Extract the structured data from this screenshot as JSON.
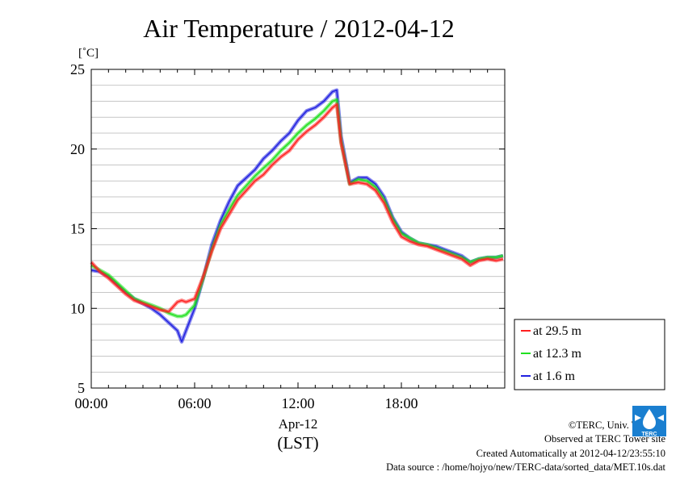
{
  "chart_data": {
    "type": "line",
    "title": "Air Temperature / 2012-04-12",
    "ylabel_unit": "[˚C]",
    "xlabel": "Apr-12",
    "xlabel2": "(LST)",
    "xlim": [
      0,
      24
    ],
    "ylim": [
      5,
      25
    ],
    "x_ticks": [
      {
        "value": 0,
        "label": "00:00"
      },
      {
        "value": 6,
        "label": "06:00"
      },
      {
        "value": 12,
        "label": "12:00"
      },
      {
        "value": 18,
        "label": "18:00"
      }
    ],
    "y_ticks": [
      {
        "value": 5,
        "label": "5"
      },
      {
        "value": 10,
        "label": "10"
      },
      {
        "value": 15,
        "label": "15"
      },
      {
        "value": 20,
        "label": "20"
      },
      {
        "value": 25,
        "label": "25"
      }
    ],
    "grid": true,
    "legend_position": "bottom-right-outside",
    "x": [
      0,
      0.5,
      1,
      1.5,
      2,
      2.5,
      3,
      3.5,
      4,
      4.5,
      5,
      5.25,
      5.5,
      6,
      6.5,
      7,
      7.5,
      8,
      8.5,
      9,
      9.5,
      10,
      10.5,
      11,
      11.5,
      12,
      12.5,
      13,
      13.5,
      14,
      14.25,
      14.5,
      15,
      15.5,
      16,
      16.5,
      17,
      17.5,
      18,
      18.5,
      19,
      19.5,
      20,
      20.5,
      21,
      21.5,
      22,
      22.5,
      23,
      23.5,
      23.9
    ],
    "series": [
      {
        "name": "at 29.5 m",
        "color": "#ff2020",
        "values": [
          12.9,
          12.3,
          11.9,
          11.4,
          10.9,
          10.5,
          10.3,
          10.1,
          9.9,
          9.8,
          10.4,
          10.5,
          10.4,
          10.6,
          12.0,
          13.6,
          15.0,
          15.9,
          16.8,
          17.4,
          18.0,
          18.4,
          19.0,
          19.5,
          19.9,
          20.6,
          21.1,
          21.5,
          22.0,
          22.6,
          22.8,
          20.4,
          17.8,
          17.9,
          17.8,
          17.4,
          16.6,
          15.4,
          14.5,
          14.2,
          14.0,
          13.9,
          13.7,
          13.5,
          13.3,
          13.1,
          12.7,
          13.0,
          13.1,
          13.0,
          13.1
        ]
      },
      {
        "name": "at 12.3 m",
        "color": "#20e020",
        "values": [
          12.7,
          12.4,
          12.1,
          11.6,
          11.1,
          10.6,
          10.4,
          10.2,
          10.0,
          9.7,
          9.5,
          9.5,
          9.6,
          10.2,
          11.9,
          13.7,
          15.2,
          16.2,
          17.1,
          17.7,
          18.3,
          18.8,
          19.3,
          19.9,
          20.4,
          21.0,
          21.5,
          21.9,
          22.4,
          23.0,
          23.1,
          20.5,
          17.8,
          18.1,
          18.0,
          17.6,
          16.8,
          15.6,
          14.7,
          14.4,
          14.1,
          14.0,
          13.8,
          13.6,
          13.4,
          13.2,
          12.9,
          13.1,
          13.2,
          13.2,
          13.3
        ]
      },
      {
        "name": "at 1.6 m",
        "color": "#2020e0",
        "values": [
          12.4,
          12.3,
          12.0,
          11.5,
          11.0,
          10.6,
          10.3,
          10.0,
          9.6,
          9.1,
          8.6,
          7.9,
          8.6,
          10.0,
          11.9,
          14.0,
          15.5,
          16.7,
          17.7,
          18.2,
          18.7,
          19.4,
          19.9,
          20.5,
          21.0,
          21.8,
          22.4,
          22.6,
          23.0,
          23.6,
          23.7,
          20.8,
          17.9,
          18.2,
          18.2,
          17.8,
          17.0,
          15.7,
          14.8,
          14.4,
          14.1,
          14.0,
          13.9,
          13.7,
          13.5,
          13.3,
          12.9,
          13.1,
          13.2,
          13.2,
          13.3
        ]
      }
    ]
  },
  "footer": {
    "copyright": "©TERC, Univ. Tsukuba",
    "observed": "Observed at TERC Tower site",
    "created": "Created Automatically at 2012-04-12/23:55:10",
    "source": "Data source : /home/hojyo/new/TERC-data/sorted_data/MET.10s.dat"
  },
  "logo": {
    "label": "TERC",
    "color": "#1a7fd0"
  }
}
